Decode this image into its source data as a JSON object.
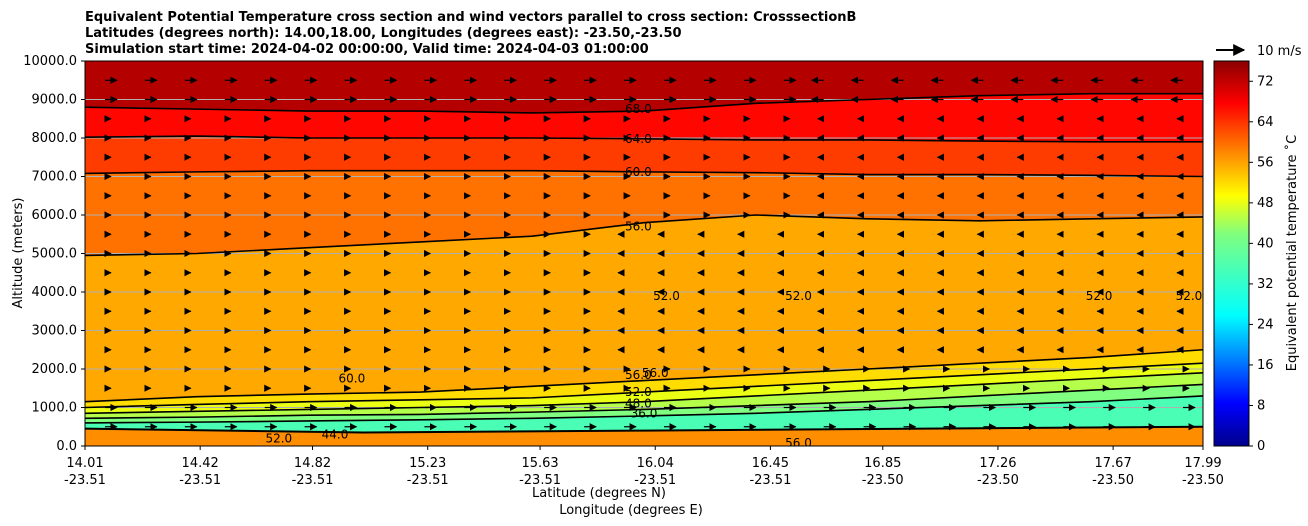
{
  "chart_data": {
    "type": "heatmap",
    "title_lines": [
      "Equivalent Potential Temperature cross section and wind vectors parallel to cross section: CrosssectionB",
      "Latitudes (degrees north): 14.00,18.00, Longitudes (degrees east): -23.50,-23.50",
      "Simulation start time: 2024-04-02 00:00:00, Valid time: 2024-04-03 01:00:00"
    ],
    "ylabel": "Altitude (meters)",
    "xlabel_line1": "Latitude (degrees N)",
    "xlabel_line2": "Longitude (degrees E)",
    "ylim": [
      0,
      10000
    ],
    "y_ticks": [
      "0.0",
      "1000.0",
      "2000.0",
      "3000.0",
      "4000.0",
      "5000.0",
      "6000.0",
      "7000.0",
      "8000.0",
      "9000.0",
      "10000.0"
    ],
    "x_ticks": [
      {
        "lat": "14.01",
        "lon": "-23.51"
      },
      {
        "lat": "14.42",
        "lon": "-23.51"
      },
      {
        "lat": "14.82",
        "lon": "-23.51"
      },
      {
        "lat": "15.23",
        "lon": "-23.51"
      },
      {
        "lat": "15.63",
        "lon": "-23.51"
      },
      {
        "lat": "16.04",
        "lon": "-23.51"
      },
      {
        "lat": "16.45",
        "lon": "-23.51"
      },
      {
        "lat": "16.85",
        "lon": "-23.50"
      },
      {
        "lat": "17.26",
        "lon": "-23.50"
      },
      {
        "lat": "17.67",
        "lon": "-23.50"
      },
      {
        "lat": "17.99",
        "lon": "-23.50"
      }
    ],
    "colorbar": {
      "label": "Equivalent potential temperature ˚C",
      "range": [
        0,
        76
      ],
      "ticks": [
        "0",
        "8",
        "16",
        "24",
        "32",
        "40",
        "48",
        "56",
        "64",
        "72"
      ],
      "colormap": "jet"
    },
    "wind_reference": "10 m/s",
    "contours": [
      {
        "level": 68,
        "label": "68.0",
        "altitudes": [
          8800,
          8750,
          8700,
          8700,
          8650,
          8700,
          8900,
          9000,
          9100,
          9150,
          9150
        ]
      },
      {
        "level": 64,
        "label": "64.0",
        "altitudes": [
          8020,
          8050,
          8000,
          8000,
          8000,
          7980,
          7950,
          7950,
          7920,
          7900,
          7900
        ]
      },
      {
        "level": 60,
        "label": "60.0",
        "altitudes": [
          7080,
          7120,
          7150,
          7150,
          7150,
          7120,
          7100,
          7050,
          7050,
          7030,
          7000
        ]
      },
      {
        "level": 56,
        "label": "56.0",
        "altitudes": [
          4950,
          5000,
          5150,
          5300,
          5450,
          5800,
          6000,
          5900,
          5850,
          5900,
          5950
        ]
      },
      {
        "level": 52,
        "label": "52.0",
        "altitudes": [
          1150,
          1280,
          1350,
          1400,
          1550,
          1700,
          1850,
          2000,
          2150,
          2300,
          2500
        ]
      },
      {
        "level": 48,
        "label": "48.0",
        "altitudes": [
          1000,
          1080,
          1150,
          1200,
          1250,
          1400,
          1550,
          1700,
          1850,
          2000,
          2150
        ]
      },
      {
        "level": 44,
        "label": "44.0",
        "altitudes": [
          850,
          900,
          950,
          1000,
          1050,
          1150,
          1300,
          1450,
          1600,
          1750,
          1900
        ]
      },
      {
        "level": 40,
        "label": "40.0",
        "altitudes": [
          720,
          750,
          800,
          820,
          880,
          950,
          1050,
          1150,
          1300,
          1450,
          1600
        ]
      },
      {
        "level": 36,
        "label": "36.0",
        "altitudes": [
          600,
          620,
          650,
          680,
          720,
          780,
          850,
          950,
          1050,
          1150,
          1300
        ]
      }
    ],
    "contour_labels": [
      {
        "text": "68.0",
        "x_lat": 15.98,
        "alt": 8750
      },
      {
        "text": "64.0",
        "x_lat": 15.98,
        "alt": 7980
      },
      {
        "text": "60.0",
        "x_lat": 15.98,
        "alt": 7120
      },
      {
        "text": "56.0",
        "x_lat": 15.98,
        "alt": 5700
      },
      {
        "text": "52.0",
        "x_lat": 16.08,
        "alt": 3900
      },
      {
        "text": "52.0",
        "x_lat": 16.55,
        "alt": 3900
      },
      {
        "text": "52.0",
        "x_lat": 17.62,
        "alt": 3900
      },
      {
        "text": "52.0",
        "x_lat": 17.94,
        "alt": 3900
      },
      {
        "text": "60.0",
        "x_lat": 14.96,
        "alt": 1750
      },
      {
        "text": "56.0",
        "x_lat": 15.98,
        "alt": 1850
      },
      {
        "text": "56.0",
        "x_lat": 16.04,
        "alt": 1900
      },
      {
        "text": "52.0",
        "x_lat": 15.98,
        "alt": 1400
      },
      {
        "text": "48.0",
        "x_lat": 15.98,
        "alt": 1100
      },
      {
        "text": "36.0",
        "x_lat": 16.0,
        "alt": 850
      },
      {
        "text": "56.0",
        "x_lat": 16.55,
        "alt": 80
      },
      {
        "text": "44.0",
        "x_lat": 14.9,
        "alt": 300
      },
      {
        "text": "52.0",
        "x_lat": 14.7,
        "alt": 200
      }
    ]
  }
}
